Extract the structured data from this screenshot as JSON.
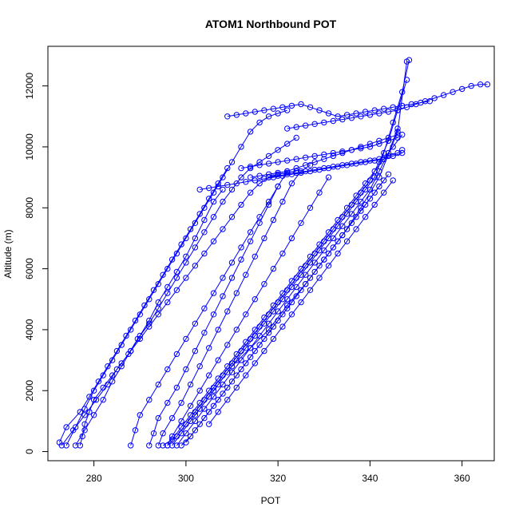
{
  "chart_data": {
    "type": "line",
    "title": "ATOM1 Northbound POT",
    "xlabel": "POT",
    "ylabel": "Altitude (m)",
    "xlim": [
      270,
      367
    ],
    "ylim": [
      -300,
      13300
    ],
    "xticks": [
      280,
      300,
      320,
      340,
      360
    ],
    "yticks": [
      0,
      2000,
      4000,
      6000,
      8000,
      10000,
      12000
    ],
    "grid": false,
    "legend": "none",
    "marker": "open-circle",
    "color": "#0000FF",
    "series": [
      {
        "x": [
          272.5,
          274,
          277,
          279,
          281,
          283,
          285,
          287,
          289,
          291,
          293,
          295,
          297,
          299,
          301,
          303,
          305,
          307,
          309
        ],
        "y": [
          300,
          800,
          1300,
          1800,
          2300,
          2800,
          3300,
          3800,
          4300,
          4800,
          5300,
          5800,
          6300,
          6800,
          7300,
          7800,
          8300,
          8800,
          9300
        ]
      },
      {
        "x": [
          273,
          275.5,
          278,
          280.5,
          283,
          285,
          287.5,
          289.5,
          292,
          294,
          296,
          298,
          300,
          302,
          304,
          306,
          308,
          310,
          312,
          314,
          316,
          318,
          320,
          322,
          324
        ],
        "y": [
          200,
          700,
          1200,
          1700,
          2200,
          2700,
          3200,
          3700,
          4200,
          4700,
          5200,
          5700,
          6200,
          6700,
          7200,
          7700,
          8200,
          8600,
          9000,
          9300,
          9500,
          9700,
          9900,
          10100,
          10300
        ]
      },
      {
        "x": [
          274,
          276,
          278,
          280,
          282,
          284,
          286,
          288,
          290,
          292,
          294,
          296,
          298,
          300,
          302,
          304,
          306,
          308,
          310,
          312,
          314,
          316,
          318,
          320,
          322
        ],
        "y": [
          200,
          800,
          1400,
          2000,
          2500,
          3000,
          3500,
          4000,
          4500,
          5000,
          5500,
          6000,
          6500,
          7000,
          7500,
          8000,
          8500,
          9000,
          9500,
          10000,
          10500,
          10800,
          11000,
          11100,
          11200
        ]
      },
      {
        "x": [
          277,
          277.5,
          278,
          279,
          280,
          282,
          284,
          286,
          288,
          290,
          292,
          294,
          296,
          298,
          300,
          302,
          304,
          306,
          308,
          310,
          312,
          314,
          316,
          318,
          320,
          322,
          324
        ],
        "y": [
          200,
          500,
          900,
          1300,
          1700,
          2100,
          2500,
          2900,
          3300,
          3700,
          4100,
          4500,
          4900,
          5300,
          5700,
          6100,
          6500,
          6900,
          7300,
          7700,
          8100,
          8500,
          8800,
          9000,
          9100,
          9150,
          9200
        ]
      },
      {
        "x": [
          276,
          278,
          280,
          282,
          284,
          286,
          288,
          290,
          292,
          294,
          296,
          298,
          300,
          302,
          304,
          306,
          308
        ],
        "y": [
          200,
          700,
          1200,
          1700,
          2300,
          2800,
          3300,
          3800,
          4300,
          4900,
          5400,
          5900,
          6400,
          7000,
          7600,
          8200,
          8600
        ]
      },
      {
        "x": [
          288,
          289,
          290,
          292,
          294,
          296,
          298,
          300,
          302,
          304,
          306,
          308,
          310,
          312,
          314,
          316,
          318,
          320,
          322
        ],
        "y": [
          200,
          700,
          1200,
          1700,
          2200,
          2700,
          3200,
          3700,
          4200,
          4700,
          5200,
          5700,
          6200,
          6700,
          7200,
          7700,
          8200,
          8700,
          9200
        ]
      },
      {
        "x": [
          292,
          293,
          294,
          296,
          298,
          300,
          302,
          304,
          306,
          308,
          310,
          312,
          314,
          316,
          318,
          320
        ],
        "y": [
          200,
          600,
          1100,
          1600,
          2100,
          2700,
          3300,
          3900,
          4500,
          5100,
          5700,
          6300,
          6900,
          7500,
          8100,
          8700
        ]
      },
      {
        "x": [
          294,
          295,
          297,
          299,
          301,
          303,
          305,
          307,
          309,
          311,
          313,
          315,
          317,
          319,
          321,
          323,
          325,
          327
        ],
        "y": [
          200,
          600,
          1100,
          1600,
          2200,
          2800,
          3400,
          4000,
          4600,
          5200,
          5800,
          6400,
          7000,
          7600,
          8200,
          8800,
          9200,
          9400
        ]
      },
      {
        "x": [
          296,
          297,
          299,
          301,
          303,
          305,
          307,
          309,
          311,
          313,
          315,
          317,
          319,
          321,
          323,
          325,
          327,
          329,
          331
        ],
        "y": [
          200,
          500,
          1000,
          1500,
          2000,
          2500,
          3000,
          3500,
          4000,
          4500,
          5000,
          5500,
          6000,
          6500,
          7000,
          7500,
          8000,
          8500,
          9000
        ]
      },
      {
        "x": [
          295,
          297,
          299,
          301,
          303,
          305,
          307,
          309,
          311,
          313,
          315,
          317,
          319,
          321,
          323,
          325,
          327,
          329,
          331,
          333,
          335,
          337,
          339,
          341,
          343,
          345,
          347
        ],
        "y": [
          200,
          400,
          800,
          1200,
          1600,
          2000,
          2400,
          2800,
          3200,
          3600,
          4000,
          4400,
          4800,
          5200,
          5600,
          6000,
          6400,
          6800,
          7200,
          7600,
          8000,
          8400,
          8800,
          9200,
          9600,
          10000,
          10400
        ]
      },
      {
        "x": [
          296,
          298,
          300,
          302,
          304,
          306,
          308,
          310,
          312,
          314,
          316,
          318,
          320,
          322,
          324,
          326,
          328,
          330,
          332,
          334,
          336,
          338,
          340,
          342,
          344,
          346,
          348
        ],
        "y": [
          200,
          500,
          900,
          1300,
          1700,
          2100,
          2500,
          2900,
          3300,
          3700,
          4100,
          4500,
          4900,
          5300,
          5700,
          6100,
          6500,
          6900,
          7300,
          7700,
          8100,
          8500,
          8900,
          9500,
          10200,
          11200,
          12200
        ]
      },
      {
        "x": [
          297,
          299,
          301,
          303,
          305,
          307,
          309,
          311,
          313,
          315,
          317,
          319,
          321,
          323,
          325,
          327,
          329,
          331,
          333,
          335,
          337,
          339,
          341,
          343,
          345,
          347,
          348.5
        ],
        "y": [
          200,
          600,
          1000,
          1400,
          1800,
          2200,
          2600,
          3000,
          3400,
          3800,
          4200,
          4600,
          5000,
          5400,
          5800,
          6200,
          6600,
          7000,
          7400,
          7800,
          8200,
          8600,
          9000,
          9800,
          10800,
          11800,
          12850
        ]
      },
      {
        "x": [
          298,
          300,
          302,
          304,
          306,
          308,
          310,
          312,
          314,
          316,
          318,
          320,
          322,
          324,
          326,
          328,
          330,
          332,
          334,
          336,
          338,
          340,
          342,
          344,
          346
        ],
        "y": [
          200,
          600,
          1000,
          1400,
          1800,
          2200,
          2600,
          3000,
          3400,
          3800,
          4200,
          4600,
          5000,
          5400,
          5800,
          6200,
          6600,
          7000,
          7400,
          7800,
          8200,
          8600,
          9200,
          9800,
          10600
        ]
      },
      {
        "x": [
          299,
          301,
          303,
          305,
          307,
          309,
          311,
          313,
          315,
          317,
          319,
          321,
          323,
          325,
          327,
          329,
          331,
          333,
          335,
          337,
          339,
          341,
          343
        ],
        "y": [
          200,
          500,
          900,
          1300,
          1700,
          2100,
          2500,
          2900,
          3300,
          3700,
          4100,
          4500,
          4900,
          5300,
          5700,
          6100,
          6500,
          6900,
          7300,
          7700,
          8100,
          8500,
          8900
        ]
      },
      {
        "x": [
          300,
          302,
          304,
          306,
          308,
          310,
          312,
          314,
          316,
          318,
          320,
          322,
          324,
          326,
          328,
          330,
          332,
          334,
          336,
          338,
          340,
          342,
          344
        ],
        "y": [
          300,
          700,
          1100,
          1500,
          1900,
          2300,
          2700,
          3100,
          3500,
          3900,
          4300,
          4700,
          5100,
          5500,
          5900,
          6300,
          6700,
          7100,
          7500,
          7900,
          8300,
          8700,
          9100
        ]
      },
      {
        "x": [
          305,
          307,
          309,
          311,
          313,
          315,
          317,
          319,
          321,
          323,
          325,
          327,
          329,
          331,
          333,
          335,
          337,
          339,
          341,
          343,
          345
        ],
        "y": [
          900,
          1300,
          1700,
          2100,
          2500,
          2900,
          3300,
          3700,
          4100,
          4500,
          4900,
          5300,
          5700,
          6100,
          6500,
          6900,
          7300,
          7700,
          8100,
          8500,
          8900
        ]
      },
      {
        "x": [
          302,
          306,
          310,
          314,
          318,
          322,
          326,
          330,
          334,
          338,
          342,
          346,
          348
        ],
        "y": [
          1200,
          2000,
          2800,
          3400,
          4000,
          4800,
          5500,
          6300,
          7100,
          8000,
          9000,
          10500,
          12800
        ]
      },
      {
        "x": [
          309,
          311,
          313,
          315,
          317,
          319,
          321,
          323,
          325,
          327,
          329,
          331,
          333,
          335,
          337,
          339,
          341,
          343,
          345,
          347,
          349,
          351,
          353
        ],
        "y": [
          11000,
          11050,
          11100,
          11150,
          11200,
          11250,
          11300,
          11350,
          11400,
          11300,
          11200,
          11100,
          11000,
          11050,
          11100,
          11150,
          11200,
          11250,
          11300,
          11350,
          11400,
          11450,
          11500
        ]
      },
      {
        "x": [
          314,
          316,
          318,
          320,
          322,
          324,
          326,
          328,
          330,
          332,
          334,
          336,
          338,
          340,
          342,
          344,
          346
        ],
        "y": [
          9000,
          9050,
          9100,
          9150,
          9200,
          9300,
          9400,
          9500,
          9600,
          9700,
          9800,
          9900,
          10000,
          10100,
          10200,
          10300,
          10400
        ]
      },
      {
        "x": [
          303,
          305,
          307,
          309,
          311,
          313,
          315,
          317,
          319,
          321,
          323,
          325,
          327,
          329,
          331,
          333,
          335,
          337,
          339,
          341,
          343,
          345,
          347
        ],
        "y": [
          8600,
          8650,
          8700,
          8750,
          8800,
          8850,
          8900,
          8950,
          9000,
          9050,
          9100,
          9150,
          9200,
          9250,
          9300,
          9350,
          9400,
          9450,
          9500,
          9550,
          9600,
          9700,
          9800
        ]
      },
      {
        "x": [
          322,
          324,
          326,
          328,
          330,
          332,
          334,
          336,
          338,
          340,
          342,
          344,
          346,
          348,
          350,
          352,
          354,
          356,
          358,
          360,
          362,
          364,
          365.5
        ],
        "y": [
          10600,
          10650,
          10700,
          10750,
          10800,
          10850,
          10900,
          10950,
          11000,
          11050,
          11100,
          11150,
          11200,
          11300,
          11400,
          11500,
          11600,
          11700,
          11800,
          11900,
          12000,
          12050,
          12050
        ]
      },
      {
        "x": [
          312,
          314,
          316,
          318,
          320,
          322,
          324,
          326,
          328,
          330,
          332,
          334,
          336,
          338,
          340,
          342,
          344,
          346
        ],
        "y": [
          9300,
          9350,
          9400,
          9450,
          9500,
          9550,
          9600,
          9650,
          9700,
          9750,
          9800,
          9850,
          9900,
          9950,
          10000,
          10100,
          10200,
          10300
        ]
      },
      {
        "x": [
          318,
          320,
          322,
          324,
          326,
          328,
          330,
          332,
          334,
          336,
          338,
          340,
          342,
          344,
          346,
          347
        ],
        "y": [
          9000,
          9050,
          9100,
          9150,
          9200,
          9250,
          9300,
          9350,
          9400,
          9450,
          9500,
          9550,
          9600,
          9700,
          9800,
          9900
        ]
      }
    ]
  }
}
